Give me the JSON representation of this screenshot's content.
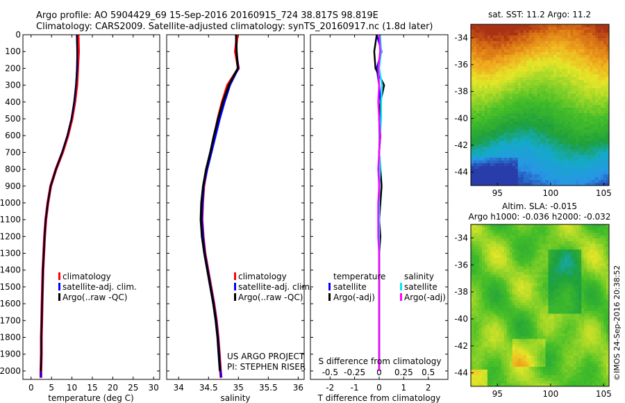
{
  "header": {
    "line1": "Argo profile: AO 5904429_69 15-Sep-2016 20160915_724 38.817S 98.819E",
    "line2": "Climatology: CARS2009. Satellite-adjusted climatology: synTS_20160917.nc (1.8d later)"
  },
  "credits": {
    "project": "US ARGO PROJECT",
    "pi": "PI: STEPHEN RISER",
    "timestamp": "©IMOS 24-Sep-2016 20:38:52"
  },
  "colors": {
    "climatology": "#ff0000",
    "satellite": "#0000ff",
    "argo": "#000000",
    "sat_s": "#00e5ff",
    "argo_s": "#ff00ff"
  },
  "chart_data": [
    {
      "id": "temp",
      "type": "line",
      "xlabel": "temperature (deg C)",
      "ylabel": "",
      "xlim": [
        -2,
        31.5
      ],
      "ylim": [
        2050,
        0
      ],
      "xticks": [
        0,
        5,
        10,
        15,
        20,
        25,
        30
      ],
      "yticks": [
        0,
        100,
        200,
        300,
        400,
        500,
        600,
        700,
        800,
        900,
        1000,
        1100,
        1200,
        1300,
        1400,
        1500,
        1600,
        1700,
        1800,
        1900,
        2000
      ],
      "legend": {
        "placement": "lower-center",
        "entries": [
          "climatology",
          "satellite-adj. clim.",
          "Argo(..raw -QC)"
        ]
      },
      "series": [
        {
          "key": "climatology",
          "x": [
            11.5,
            11.6,
            11.4,
            11.2,
            10.7,
            10.0,
            9.0,
            7.7,
            6.1,
            4.8,
            4.1,
            3.6,
            3.3,
            3.1,
            2.9,
            2.8,
            2.7,
            2.6,
            2.5,
            2.5,
            2.4,
            2.4
          ],
          "y": [
            0,
            100,
            200,
            300,
            400,
            500,
            600,
            700,
            800,
            900,
            1000,
            1100,
            1200,
            1300,
            1400,
            1500,
            1600,
            1700,
            1800,
            1900,
            2000,
            2040
          ]
        },
        {
          "key": "satellite",
          "x": [
            11.2,
            11.3,
            11.3,
            11.0,
            10.6,
            9.9,
            8.9,
            7.6,
            6.1,
            4.8,
            4.1,
            3.6,
            3.3,
            3.1,
            2.9,
            2.8,
            2.7,
            2.6,
            2.5,
            2.5,
            2.4,
            2.4
          ],
          "y": [
            0,
            100,
            200,
            300,
            400,
            500,
            600,
            700,
            800,
            900,
            1000,
            1100,
            1200,
            1300,
            1400,
            1500,
            1600,
            1700,
            1800,
            1900,
            2000,
            2040
          ]
        },
        {
          "key": "argo",
          "x": [
            11.2,
            11.3,
            11.2,
            11.0,
            10.5,
            9.9,
            8.9,
            7.6,
            6.1,
            4.8,
            4.1,
            3.6,
            3.3,
            3.1,
            2.9,
            2.8,
            2.7,
            2.6,
            2.5,
            2.5,
            2.4
          ],
          "y": [
            0,
            100,
            200,
            300,
            400,
            500,
            600,
            700,
            800,
            900,
            1000,
            1100,
            1200,
            1300,
            1400,
            1500,
            1600,
            1700,
            1800,
            1900,
            2000
          ]
        }
      ]
    },
    {
      "id": "sal",
      "type": "line",
      "xlabel": "salinity",
      "ylabel": "",
      "xlim": [
        33.8,
        36.1
      ],
      "ylim": [
        2050,
        0
      ],
      "xticks": [
        34,
        34.5,
        35,
        35.5,
        36
      ],
      "legend": {
        "placement": "lower-center",
        "entries": [
          "climatology",
          "satellite-adj. clim.",
          "Argo(..raw -QC)"
        ]
      },
      "series": [
        {
          "key": "climatology",
          "x": [
            34.98,
            34.95,
            35.0,
            34.82,
            34.73,
            34.66,
            34.6,
            34.54,
            34.47,
            34.42,
            34.4,
            34.39,
            34.41,
            34.44,
            34.49,
            34.54,
            34.59,
            34.63,
            34.66,
            34.68,
            34.7,
            34.71
          ],
          "y": [
            0,
            100,
            200,
            300,
            400,
            500,
            600,
            700,
            800,
            900,
            1000,
            1100,
            1200,
            1300,
            1400,
            1500,
            1600,
            1700,
            1800,
            1900,
            2000,
            2040
          ]
        },
        {
          "key": "satellite",
          "x": [
            34.96,
            34.97,
            35.0,
            34.86,
            34.77,
            34.69,
            34.62,
            34.55,
            34.48,
            34.42,
            34.4,
            34.39,
            34.41,
            34.44,
            34.49,
            34.54,
            34.59,
            34.63,
            34.66,
            34.68,
            34.7,
            34.71
          ],
          "y": [
            0,
            100,
            200,
            300,
            400,
            500,
            600,
            700,
            800,
            900,
            1000,
            1100,
            1200,
            1300,
            1400,
            1500,
            1600,
            1700,
            1800,
            1900,
            2000,
            2040
          ]
        },
        {
          "key": "argo",
          "x": [
            34.96,
            34.97,
            34.99,
            34.84,
            34.74,
            34.66,
            34.59,
            34.53,
            34.46,
            34.41,
            34.38,
            34.37,
            34.39,
            34.43,
            34.48,
            34.53,
            34.58,
            34.62,
            34.65,
            34.67,
            34.69
          ],
          "y": [
            0,
            100,
            200,
            300,
            400,
            500,
            600,
            700,
            800,
            900,
            1000,
            1100,
            1200,
            1300,
            1400,
            1500,
            1600,
            1700,
            1800,
            1900,
            2000
          ]
        }
      ]
    },
    {
      "id": "diff",
      "type": "line",
      "xlabel": "T difference from climatology",
      "x2label": "S difference from climatology",
      "xlim": [
        -2.8,
        2.8
      ],
      "ylim": [
        2050,
        0
      ],
      "xticks": [
        -2,
        -1,
        0,
        1,
        2
      ],
      "x2lim": [
        -0.7,
        0.7
      ],
      "x2ticks": [
        -0.5,
        -0.25,
        0,
        0.25,
        0.5
      ],
      "legend": {
        "placement": "lower-center",
        "titles": [
          "temperature",
          "salinity"
        ],
        "entries": [
          "satellite",
          "Argo(-adj)",
          "satellite",
          "Argo(-adj)"
        ]
      },
      "series": [
        {
          "key": "satellite",
          "group": "temperature",
          "x": [
            -0.1,
            0.1,
            -0.1,
            0.0,
            0.05,
            0.0,
            0.02,
            0.0,
            0.0,
            0.0,
            0.0,
            0.0,
            0.0,
            0.0,
            0.0,
            0.0,
            0.0,
            0.0,
            0.0,
            0.0,
            0.0
          ],
          "y": [
            0,
            100,
            200,
            300,
            400,
            500,
            600,
            700,
            800,
            900,
            1000,
            1100,
            1200,
            1300,
            1400,
            1500,
            1600,
            1700,
            1800,
            1900,
            2000
          ]
        },
        {
          "key": "argo",
          "group": "temperature",
          "x": [
            -0.1,
            -0.2,
            -0.15,
            0.2,
            0.05,
            0.0,
            0.05,
            0.0,
            0.05,
            0.1,
            0.05,
            0.0,
            0.05,
            0.0,
            0.0,
            0.0,
            0.0,
            0.0,
            0.0,
            0.0,
            0.0
          ],
          "y": [
            0,
            100,
            200,
            300,
            400,
            500,
            600,
            700,
            800,
            900,
            1000,
            1100,
            1200,
            1300,
            1400,
            1500,
            1600,
            1700,
            1800,
            1900,
            2000
          ]
        },
        {
          "key": "sat_s",
          "group": "salinity",
          "x": [
            0.01,
            0.02,
            0.0,
            0.03,
            0.02,
            0.02,
            0.01,
            0.0,
            0.01,
            0.0,
            0.0,
            0.0,
            0.0,
            0.0,
            0.0,
            0.0,
            0.0,
            0.0,
            0.0,
            0.0,
            0.0
          ],
          "y": [
            0,
            100,
            200,
            300,
            400,
            500,
            600,
            700,
            800,
            900,
            1000,
            1100,
            1200,
            1300,
            1400,
            1500,
            1600,
            1700,
            1800,
            1900,
            2000
          ]
        },
        {
          "key": "argo_s",
          "group": "salinity",
          "x": [
            0.0,
            0.01,
            -0.01,
            0.0,
            -0.01,
            0.0,
            0.01,
            0.0,
            -0.01,
            0.0,
            -0.01,
            -0.01,
            -0.01,
            0.0,
            0.0,
            0.0,
            0.0,
            0.0,
            0.0,
            0.0,
            0.0
          ],
          "y": [
            0,
            100,
            200,
            300,
            400,
            500,
            600,
            700,
            800,
            900,
            1000,
            1100,
            1200,
            1300,
            1400,
            1500,
            1600,
            1700,
            1800,
            1900,
            2000
          ]
        }
      ]
    },
    {
      "id": "sst",
      "type": "heatmap",
      "title": "sat. SST: 11.2  Argo: 11.2",
      "xlim": [
        92.5,
        105.5
      ],
      "ylim": [
        -45,
        -33
      ],
      "xticks": [
        95,
        100,
        105
      ],
      "yticks": [
        -34,
        -36,
        -38,
        -40,
        -42,
        -44
      ]
    },
    {
      "id": "sla",
      "type": "heatmap",
      "title": "Altim. SLA: -0.015",
      "subtitle": "Argo h1000: -0.036 h2000: -0.032",
      "xlim": [
        92.5,
        105.5
      ],
      "ylim": [
        -45,
        -33
      ],
      "xticks": [
        95,
        100,
        105
      ],
      "yticks": [
        -34,
        -36,
        -38,
        -40,
        -42,
        -44
      ]
    }
  ]
}
